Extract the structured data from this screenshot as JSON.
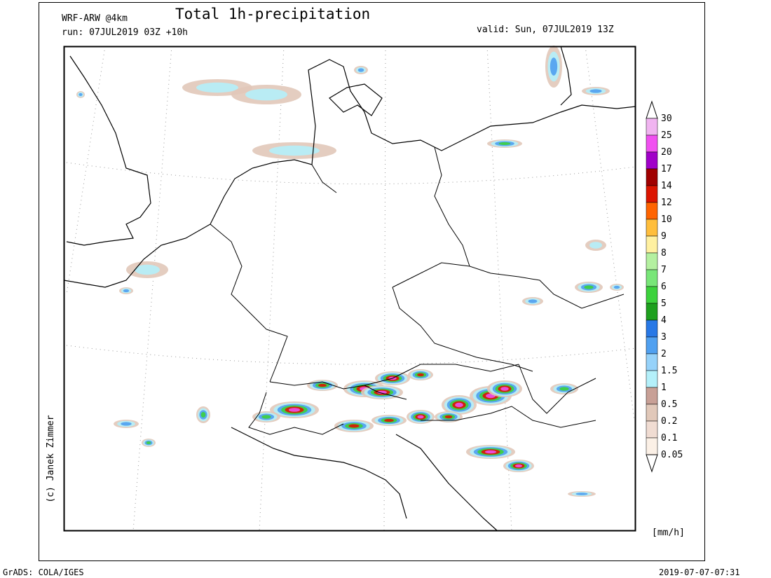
{
  "header": {
    "model": "WRF-ARW @4km",
    "title": "Total 1h-precipitation",
    "run": "run: 07JUL2019 03Z +10h",
    "valid": "valid: Sun, 07JUL2019 13Z"
  },
  "legend": {
    "unit": "[mm/h]",
    "levels": [
      30,
      25,
      20,
      17,
      14,
      12,
      10,
      9,
      8,
      7,
      6,
      5,
      4,
      3,
      2,
      1.5,
      1,
      0.5,
      0.2,
      0.1,
      0.05
    ],
    "colors": [
      "#f0b4f0",
      "#f050f0",
      "#a000c8",
      "#a00000",
      "#dc1400",
      "#ff6400",
      "#ffbe3c",
      "#fff0a0",
      "#b4f0a0",
      "#78e678",
      "#3cd23c",
      "#1ea01e",
      "#2878e6",
      "#50a0f0",
      "#96d2fa",
      "#b4f0fa",
      "#c8a096",
      "#e1c8b9",
      "#f0dcd2",
      "#fbf0e6"
    ]
  },
  "credit": "(c) Janek Zimmer",
  "footer": {
    "left": "GrADS: COLA/IGES",
    "right": "2019-07-07-07:31"
  }
}
